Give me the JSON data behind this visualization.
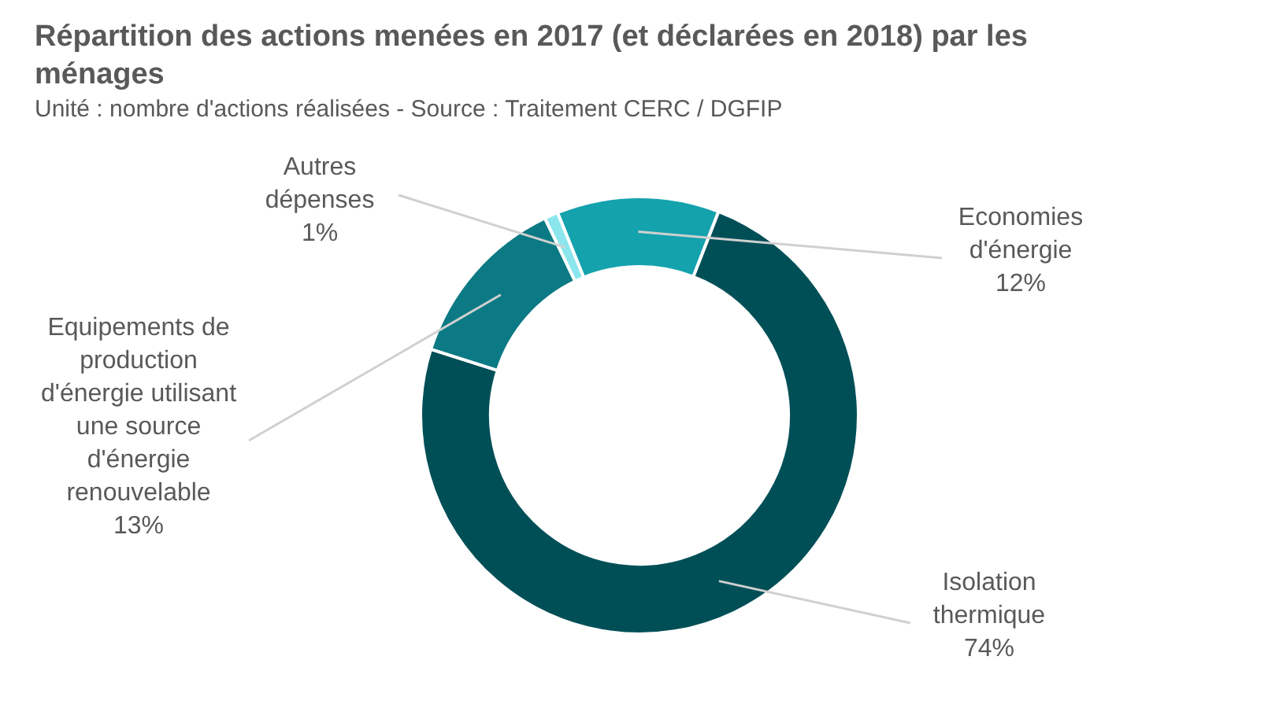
{
  "chart_data": {
    "type": "donut",
    "title": "Répartition des actions menées en 2017 (et déclarées en 2018) par les ménages",
    "subtitle": "Unité : nombre d'actions réalisées - Source : Traitement CERC  / DGFIP",
    "categories": [
      "Economies d'énergie",
      "Isolation thermique",
      "Equipements de production d'énergie utilisant une source d'énergie renouvelable",
      "Autres dépenses"
    ],
    "values": [
      12,
      74,
      13,
      1
    ],
    "colors": [
      "#14a2ad",
      "#004f57",
      "#0b7a84",
      "#8ae6ec"
    ],
    "value_labels": [
      "12%",
      "74%",
      "13%",
      "1%"
    ]
  }
}
